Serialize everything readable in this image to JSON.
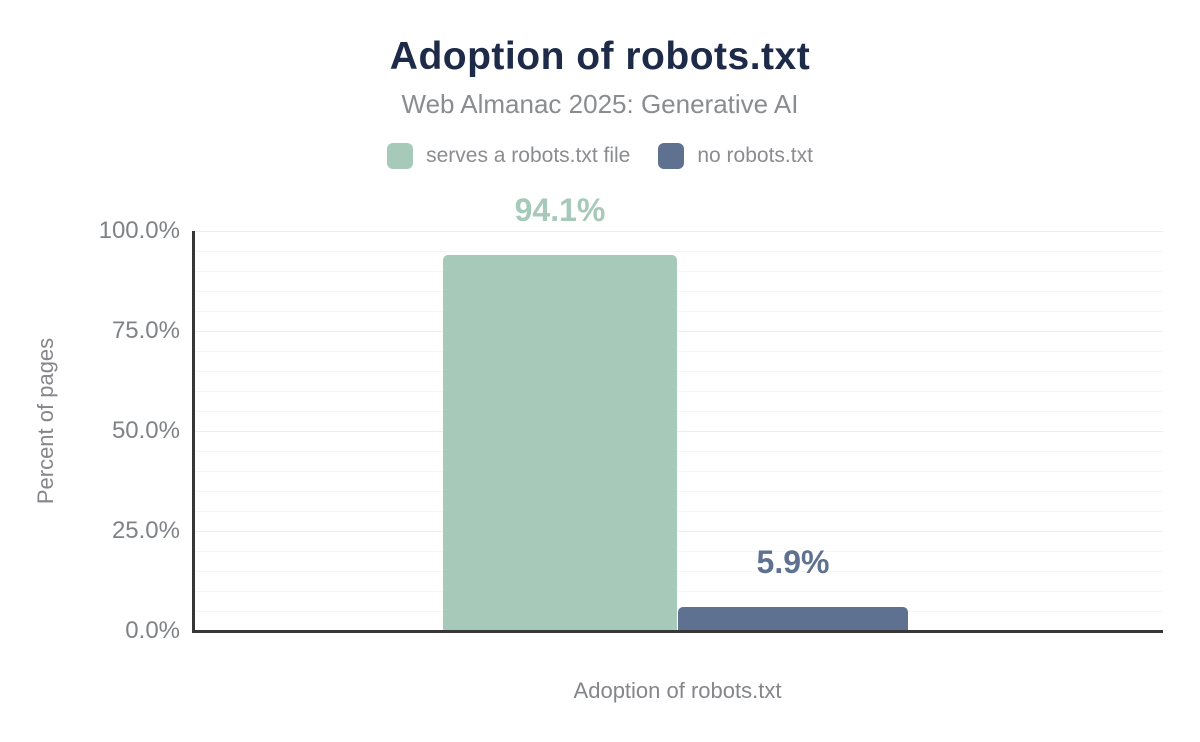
{
  "chart_data": {
    "type": "bar",
    "title": "Adoption of robots.txt",
    "subtitle": "Web Almanac 2025: Generative AI",
    "categories": [
      "Adoption of robots.txt"
    ],
    "series": [
      {
        "name": "serves a robots.txt file",
        "value": 94.1,
        "label": "94.1%",
        "color": "#a6c9b9"
      },
      {
        "name": "no robots.txt",
        "value": 5.9,
        "label": "5.9%",
        "color": "#5f7190"
      }
    ],
    "xlabel": "Adoption of robots.txt",
    "ylabel": "Percent of pages",
    "ylim": [
      0,
      100
    ],
    "ytick_step": 25,
    "minor_grid_step": 5,
    "grid": true,
    "legend_position": "top",
    "yticks": [
      "100.0%",
      "75.0%",
      "50.0%",
      "25.0%",
      "0.0%"
    ]
  },
  "colors": {
    "title_text": "#1d2b49",
    "muted_text": "#8a8c90",
    "tick_text": "#7f8286",
    "axis_line": "#373737",
    "grid_minor": "#f6f6f6",
    "grid_major": "#eeeeee",
    "background": "#ffffff"
  }
}
